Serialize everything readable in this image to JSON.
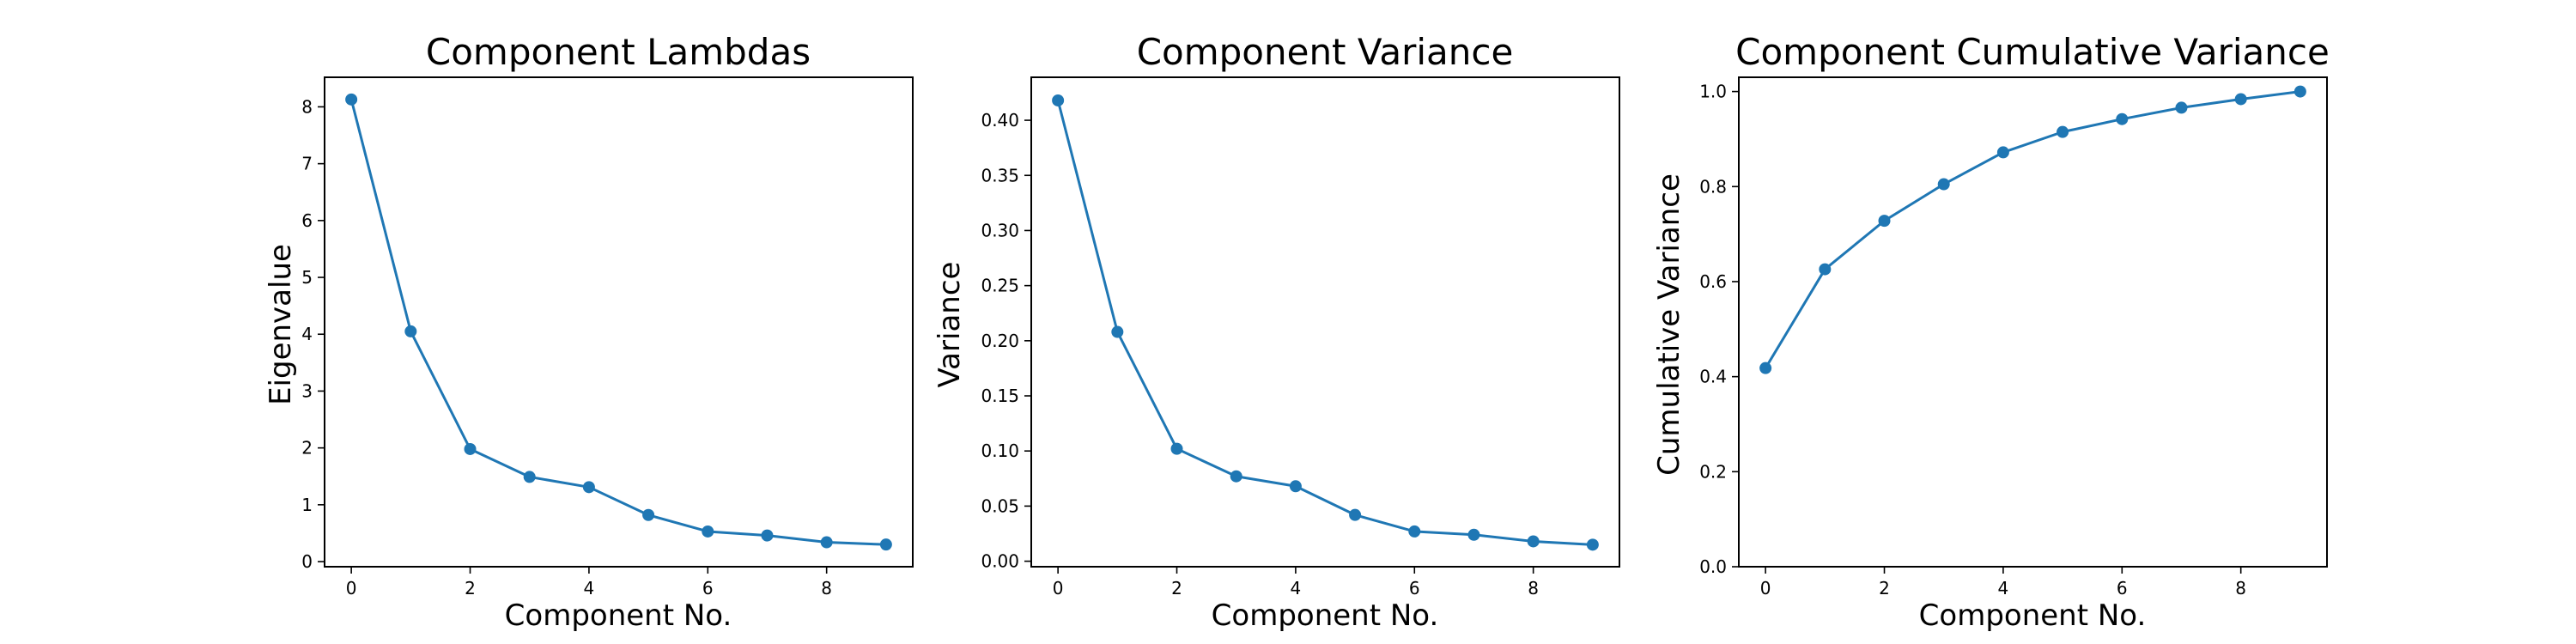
{
  "figure": {
    "line_color": "#1f77b4",
    "marker": "circle"
  },
  "chart_data": [
    {
      "type": "line",
      "title": "Component Lambdas",
      "xlabel": "Component No.",
      "ylabel": "Eigenvalue",
      "x": [
        0,
        1,
        2,
        3,
        4,
        5,
        6,
        7,
        8,
        9
      ],
      "y": [
        8.13,
        4.05,
        1.98,
        1.49,
        1.31,
        0.82,
        0.53,
        0.46,
        0.34,
        0.3
      ],
      "xlim": [
        -0.45,
        9.45
      ],
      "ylim": [
        -0.09,
        8.52
      ],
      "xticks": [
        0,
        2,
        4,
        6,
        8
      ],
      "xtick_labels": [
        "0",
        "2",
        "4",
        "6",
        "8"
      ],
      "yticks": [
        0,
        1,
        2,
        3,
        4,
        5,
        6,
        7,
        8
      ],
      "ytick_labels": [
        "0",
        "1",
        "2",
        "3",
        "4",
        "5",
        "6",
        "7",
        "8"
      ],
      "grid": false,
      "legend": false
    },
    {
      "type": "line",
      "title": "Component Variance",
      "xlabel": "Component No.",
      "ylabel": "Variance",
      "x": [
        0,
        1,
        2,
        3,
        4,
        5,
        6,
        7,
        8,
        9
      ],
      "y": [
        0.418,
        0.208,
        0.102,
        0.077,
        0.068,
        0.042,
        0.027,
        0.024,
        0.018,
        0.015
      ],
      "xlim": [
        -0.45,
        9.45
      ],
      "ylim": [
        -0.005,
        0.439
      ],
      "xticks": [
        0,
        2,
        4,
        6,
        8
      ],
      "xtick_labels": [
        "0",
        "2",
        "4",
        "6",
        "8"
      ],
      "yticks": [
        0.0,
        0.05,
        0.1,
        0.15,
        0.2,
        0.25,
        0.3,
        0.35,
        0.4
      ],
      "ytick_labels": [
        "0.00",
        "0.05",
        "0.10",
        "0.15",
        "0.20",
        "0.25",
        "0.30",
        "0.35",
        "0.40"
      ],
      "grid": false,
      "legend": false
    },
    {
      "type": "line",
      "title": "Component Cumulative Variance",
      "xlabel": "Component No.",
      "ylabel": "Cumulative Variance",
      "x": [
        0,
        1,
        2,
        3,
        4,
        5,
        6,
        7,
        8,
        9
      ],
      "y": [
        0.418,
        0.626,
        0.728,
        0.805,
        0.872,
        0.915,
        0.942,
        0.966,
        0.984,
        1.0
      ],
      "xlim": [
        -0.45,
        9.45
      ],
      "ylim": [
        0.0,
        1.03
      ],
      "xticks": [
        0,
        2,
        4,
        6,
        8
      ],
      "xtick_labels": [
        "0",
        "2",
        "4",
        "6",
        "8"
      ],
      "yticks": [
        0.0,
        0.2,
        0.4,
        0.6,
        0.8,
        1.0
      ],
      "ytick_labels": [
        "0.0",
        "0.2",
        "0.4",
        "0.6",
        "0.8",
        "1.0"
      ],
      "grid": false,
      "legend": false
    }
  ]
}
